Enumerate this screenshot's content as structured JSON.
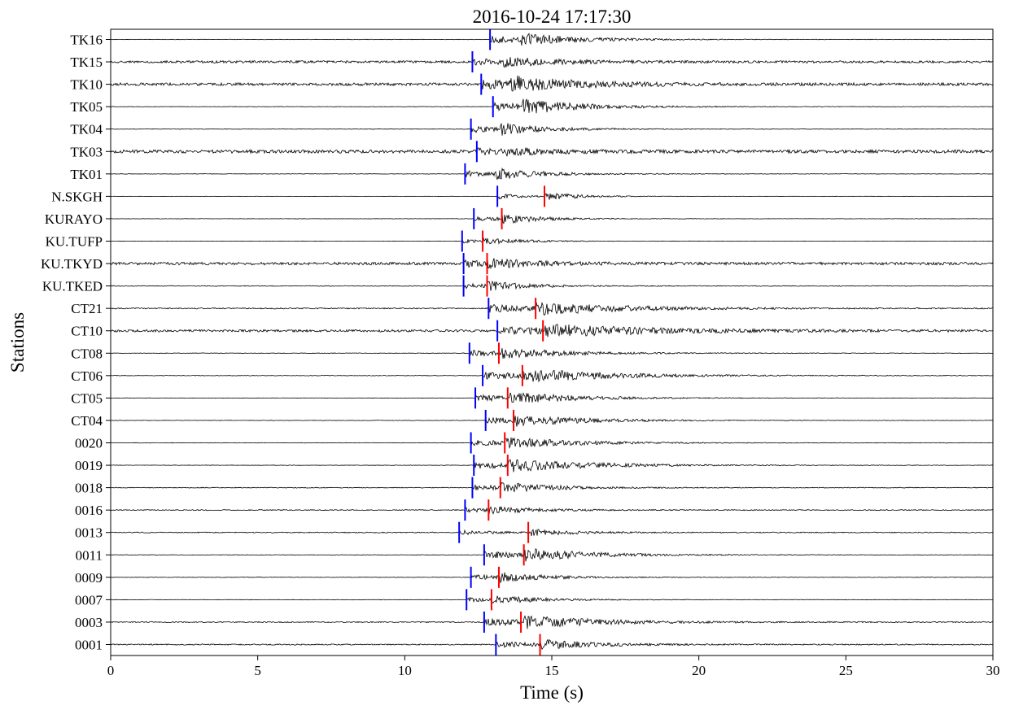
{
  "chart_data": {
    "type": "line",
    "title": "2016-10-24 17:17:30",
    "xlabel": "Time (s)",
    "ylabel": "Stations",
    "xlim": [
      0,
      30
    ],
    "xticks": [
      0,
      5,
      10,
      15,
      20,
      25,
      30
    ],
    "grid": false,
    "legend": "none",
    "trace_color": "#000000",
    "p_pick_color": "#0000ff",
    "s_pick_color": "#ff0000",
    "stations": [
      {
        "name": "TK16",
        "p_pick": 12.9,
        "s_pick": null,
        "noise": 0.05,
        "amp": 0.95,
        "decay": 1.6
      },
      {
        "name": "TK15",
        "p_pick": 12.3,
        "s_pick": null,
        "noise": 0.25,
        "amp": 0.6,
        "decay": 1.6
      },
      {
        "name": "TK10",
        "p_pick": 12.6,
        "s_pick": null,
        "noise": 0.3,
        "amp": 1.0,
        "decay": 1.9
      },
      {
        "name": "TK05",
        "p_pick": 13.0,
        "s_pick": null,
        "noise": 0.05,
        "amp": 1.0,
        "decay": 1.8
      },
      {
        "name": "TK04",
        "p_pick": 12.25,
        "s_pick": null,
        "noise": 0.05,
        "amp": 0.85,
        "decay": 1.4
      },
      {
        "name": "TK03",
        "p_pick": 12.45,
        "s_pick": null,
        "noise": 0.35,
        "amp": 0.5,
        "decay": 1.3
      },
      {
        "name": "TK01",
        "p_pick": 12.05,
        "s_pick": null,
        "noise": 0.05,
        "amp": 0.75,
        "decay": 1.5
      },
      {
        "name": "N.SKGH",
        "p_pick": 13.15,
        "s_pick": 14.75,
        "noise": 0.02,
        "amp": 0.7,
        "decay": 1.0
      },
      {
        "name": "KURAYO",
        "p_pick": 12.35,
        "s_pick": 13.3,
        "noise": 0.04,
        "amp": 0.7,
        "decay": 1.2
      },
      {
        "name": "KU.TUFP",
        "p_pick": 11.95,
        "s_pick": 12.65,
        "noise": 0.03,
        "amp": 0.5,
        "decay": 1.2
      },
      {
        "name": "KU.TKYD",
        "p_pick": 12.0,
        "s_pick": 12.8,
        "noise": 0.3,
        "amp": 0.6,
        "decay": 1.3
      },
      {
        "name": "KU.TKED",
        "p_pick": 12.0,
        "s_pick": 12.8,
        "noise": 0.08,
        "amp": 0.6,
        "decay": 1.3
      },
      {
        "name": "CT21",
        "p_pick": 12.85,
        "s_pick": 14.45,
        "noise": 0.12,
        "amp": 0.9,
        "decay": 2.5
      },
      {
        "name": "CT10",
        "p_pick": 13.15,
        "s_pick": 14.7,
        "noise": 0.25,
        "amp": 0.85,
        "decay": 2.8
      },
      {
        "name": "CT08",
        "p_pick": 12.2,
        "s_pick": 13.2,
        "noise": 0.06,
        "amp": 0.7,
        "decay": 2.0
      },
      {
        "name": "CT06",
        "p_pick": 12.65,
        "s_pick": 14.0,
        "noise": 0.06,
        "amp": 0.9,
        "decay": 2.6
      },
      {
        "name": "CT05",
        "p_pick": 12.4,
        "s_pick": 13.5,
        "noise": 0.04,
        "amp": 0.8,
        "decay": 2.0
      },
      {
        "name": "CT04",
        "p_pick": 12.75,
        "s_pick": 13.7,
        "noise": 0.05,
        "amp": 0.8,
        "decay": 2.0
      },
      {
        "name": "0020",
        "p_pick": 12.25,
        "s_pick": 13.4,
        "noise": 0.05,
        "amp": 0.7,
        "decay": 2.2
      },
      {
        "name": "0019",
        "p_pick": 12.35,
        "s_pick": 13.5,
        "noise": 0.05,
        "amp": 0.85,
        "decay": 2.4
      },
      {
        "name": "0018",
        "p_pick": 12.3,
        "s_pick": 13.25,
        "noise": 0.08,
        "amp": 0.7,
        "decay": 1.6
      },
      {
        "name": "0016",
        "p_pick": 12.05,
        "s_pick": 12.85,
        "noise": 0.1,
        "amp": 0.5,
        "decay": 1.4
      },
      {
        "name": "0013",
        "p_pick": 11.85,
        "s_pick": 14.2,
        "noise": 0.1,
        "amp": 0.5,
        "decay": 1.4
      },
      {
        "name": "0011",
        "p_pick": 12.7,
        "s_pick": 14.05,
        "noise": 0.05,
        "amp": 0.9,
        "decay": 2.0
      },
      {
        "name": "0009",
        "p_pick": 12.25,
        "s_pick": 13.2,
        "noise": 0.05,
        "amp": 0.7,
        "decay": 1.4
      },
      {
        "name": "0007",
        "p_pick": 12.1,
        "s_pick": 12.95,
        "noise": 0.05,
        "amp": 0.6,
        "decay": 1.4
      },
      {
        "name": "0003",
        "p_pick": 12.7,
        "s_pick": 13.95,
        "noise": 0.12,
        "amp": 0.85,
        "decay": 2.2
      },
      {
        "name": "0001",
        "p_pick": 13.1,
        "s_pick": 14.6,
        "noise": 0.12,
        "amp": 0.7,
        "decay": 1.6
      }
    ]
  }
}
